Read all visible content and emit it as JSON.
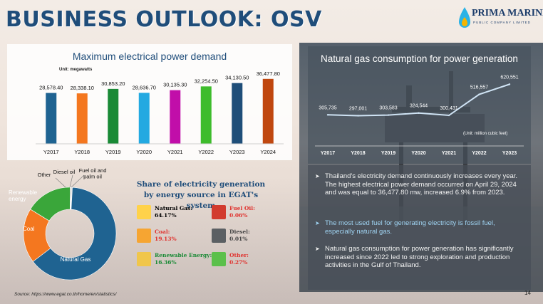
{
  "slide": {
    "title": "BUSINESS OUTLOOK: OSV",
    "page_number": "14",
    "source": "Source: https://www.egat.co.th/home/en/statistics/"
  },
  "logo": {
    "name": "PRIMA MARINE",
    "tagline": "PUBLIC COMPANY LIMITED",
    "colors": [
      "#1b3c6a",
      "#2bb3e6",
      "#f5b400"
    ]
  },
  "chart_data": [
    {
      "type": "bar",
      "title": "Maximum electrical power demand",
      "unit_label": "Unit: megawatts",
      "categories": [
        "Y2017",
        "Y2018",
        "Y2019",
        "Y2020",
        "Y2021",
        "Y2022",
        "Y2023",
        "Y2024"
      ],
      "values": [
        28578.4,
        28338.1,
        30853.2,
        28636.7,
        30135.3,
        32254.5,
        34130.5,
        36477.8
      ],
      "value_labels": [
        "28,578.40",
        "28,338.10",
        "30,853.20",
        "28,636.70",
        "30,135.30",
        "32,254.50",
        "34,130.50",
        "36,477.80"
      ],
      "colors": [
        "#1f6391",
        "#f4771f",
        "#1a8a36",
        "#23a9e1",
        "#c10ea9",
        "#3ebc2c",
        "#1f4e79",
        "#c0470f"
      ],
      "ylim": [
        0,
        40000
      ],
      "grid": false,
      "legend": "none"
    },
    {
      "type": "pie",
      "title": "Share of electricity generation by energy source in EGAT's system",
      "slices": [
        {
          "name": "Natural Gas",
          "value": 64.17,
          "color": "#1f6391"
        },
        {
          "name": "Coal",
          "value": 19.13,
          "color": "#f4771f"
        },
        {
          "name": "Renewable energy",
          "value": 16.36,
          "color": "#3aa63a"
        },
        {
          "name": "Other",
          "value": 0.27,
          "color": "#9ea2a6"
        },
        {
          "name": "Diesel oil",
          "value": 0.01,
          "color": "#6d6d6d"
        },
        {
          "name": "Fuel oil and palm oil",
          "value": 0.06,
          "color": "#c9c9c9"
        }
      ],
      "legend_entries": [
        {
          "label": "Natural Gas:",
          "value": "64.17%",
          "color": "#000000",
          "icon": "pipeline-icon"
        },
        {
          "label": "Coal:",
          "value": "19.13%",
          "color": "#e0312d",
          "icon": "coal-fire-icon"
        },
        {
          "label": "Renewable Energy:",
          "value": "16.36%",
          "color": "#1a8a36",
          "icon": "solar-panel-icon"
        },
        {
          "label": "Fuel Oil:",
          "value": "0.06%",
          "color": "#e0312d",
          "icon": "oil-barrel-icon"
        },
        {
          "label": "Diesel:",
          "value": "0.01%",
          "color": "#444444",
          "icon": "fuel-drum-icon"
        },
        {
          "label": "Other:",
          "value": "0.27%",
          "color": "#e0312d",
          "icon": "lightning-icon"
        }
      ]
    },
    {
      "type": "line",
      "title": "Natural gas consumption for power generation",
      "unit_label": "(Unit: million cubic feet)",
      "categories": [
        "Y2017",
        "Y2018",
        "Y2019",
        "Y2020",
        "Y2021",
        "Y2022",
        "Y2023"
      ],
      "values": [
        305735,
        297001,
        303583,
        324544,
        300431,
        516557,
        620551
      ],
      "value_labels": [
        "305,735",
        "297,001",
        "303,583",
        "324,544",
        "300,431",
        "516,557",
        "620,551"
      ],
      "ylim": [
        0,
        1100000
      ],
      "line_color": "#cfe3f4",
      "grid": false,
      "legend": "none"
    }
  ],
  "bullets": [
    "Thailand's electricity demand continuously increases every year. The highest electrical power demand occurred on April 29, 2024 and was equal to 36,477.80 mw, increased 6.9% from 2023.",
    "The most used fuel for generating electricity is fossil fuel, especially natural gas.",
    "Natural gas consumption for power generation has significantly increased since 2022 led to strong exploration and production activities in the Gulf of Thailand."
  ],
  "bullet_colors": [
    "#f2f2f2",
    "#9fd3f2",
    "#f2f2f2"
  ],
  "bullet_marker": "➤"
}
